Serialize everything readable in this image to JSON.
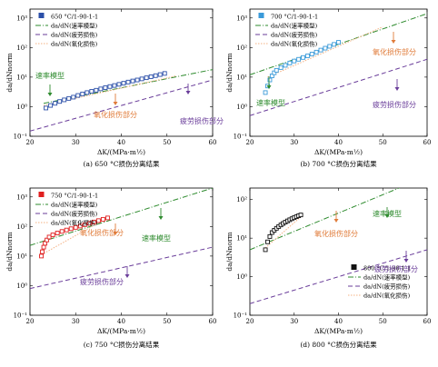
{
  "chart_data": [
    {
      "type": "scatter",
      "panel": "a",
      "caption": "(a) 650 °C损伤分离结果",
      "xlabel": "ΔK/(MPa·m½)",
      "ylabel": "da/dNnorm",
      "xlim": [
        20,
        60
      ],
      "ylim_log10": [
        -1,
        3.3
      ],
      "xticks": [
        "20",
        "30",
        "40",
        "50",
        "60"
      ],
      "yticks": [
        "10⁻¹",
        "10⁰",
        "10¹",
        "10²",
        "10³"
      ],
      "legend": [
        "650 °C/1-90-1-1",
        "da/dN(速率模型)",
        "da/dN(疲劳损伤)",
        "da/dN(氧化损伤)"
      ],
      "colors": {
        "data": "#2b4fa8",
        "rate": "#2e8b2e",
        "fatigue": "#6a3d9a",
        "oxidation": "#f4b183"
      },
      "points": [
        [
          23.5,
          0.9
        ],
        [
          24.5,
          1.1
        ],
        [
          25.5,
          1.3
        ],
        [
          26.5,
          1.5
        ],
        [
          27.5,
          1.7
        ],
        [
          28.5,
          1.9
        ],
        [
          29.5,
          2.1
        ],
        [
          30.5,
          2.4
        ],
        [
          31.5,
          2.7
        ],
        [
          32.5,
          3.0
        ],
        [
          33.5,
          3.3
        ],
        [
          34.5,
          3.6
        ],
        [
          35.5,
          4.0
        ],
        [
          36.5,
          4.4
        ],
        [
          37.5,
          4.8
        ],
        [
          38.5,
          5.2
        ],
        [
          39.5,
          5.7
        ],
        [
          40.5,
          6.2
        ],
        [
          41.5,
          6.8
        ],
        [
          42.5,
          7.4
        ],
        [
          43.5,
          8.0
        ],
        [
          44.5,
          8.7
        ],
        [
          45.5,
          9.5
        ],
        [
          46.5,
          10.3
        ],
        [
          47.5,
          11.2
        ],
        [
          48.5,
          12.2
        ],
        [
          49.5,
          13.3
        ]
      ],
      "rate_line": [
        [
          23,
          1.3
        ],
        [
          60,
          18
        ]
      ],
      "fatigue_line": [
        [
          20,
          0.15
        ],
        [
          60,
          8
        ]
      ],
      "oxidation_line": [
        [
          23,
          1.1
        ],
        [
          52,
          11
        ]
      ],
      "annotations": [
        {
          "text": "速率模型",
          "color": "#2e8b2e"
        },
        {
          "text": "氧化损伤部分",
          "color": "#e07b39"
        },
        {
          "text": "疲劳损伤部分",
          "color": "#6a3d9a"
        }
      ]
    },
    {
      "type": "scatter",
      "panel": "b",
      "caption": "(b) 700 °C损伤分离结果",
      "xlabel": "ΔK/(MPa·m½)",
      "ylabel": "da/dNnorm",
      "xlim": [
        20,
        60
      ],
      "ylim_log10": [
        -1,
        3.3
      ],
      "xticks": [
        "20",
        "30",
        "40",
        "50",
        "60"
      ],
      "yticks": [
        "10⁻¹",
        "10⁰",
        "10¹",
        "10²",
        "10³"
      ],
      "legend": [
        "700 °C/1-90-1-1",
        "da/dN(速率模型)",
        "da/dN(疲劳损伤)",
        "da/dN(氧化损伤)"
      ],
      "colors": {
        "data": "#3a9ad9",
        "rate": "#2e8b2e",
        "fatigue": "#6a3d9a",
        "oxidation": "#f4b183"
      },
      "points": [
        [
          23.5,
          3.0
        ],
        [
          24.0,
          5.0
        ],
        [
          24.5,
          8.0
        ],
        [
          25.0,
          11.0
        ],
        [
          25.5,
          14.0
        ],
        [
          26.0,
          17.0
        ],
        [
          27.0,
          21.0
        ],
        [
          28.0,
          25.0
        ],
        [
          29.0,
          30.0
        ],
        [
          30.0,
          35.0
        ],
        [
          31.0,
          40.0
        ],
        [
          32.0,
          46.0
        ],
        [
          33.0,
          52.0
        ],
        [
          34.0,
          60.0
        ],
        [
          35.0,
          70.0
        ],
        [
          36.0,
          82.0
        ],
        [
          37.0,
          95.0
        ],
        [
          38.0,
          110.0
        ],
        [
          39.0,
          128.0
        ],
        [
          40.0,
          150.0
        ]
      ],
      "rate_line": [
        [
          20,
          12
        ],
        [
          60,
          1400
        ]
      ],
      "fatigue_line": [
        [
          20,
          0.5
        ],
        [
          60,
          40
        ]
      ],
      "oxidation_line": [
        [
          24,
          10
        ],
        [
          50,
          500
        ]
      ],
      "annotations": [
        {
          "text": "速率模型",
          "color": "#2e8b2e"
        },
        {
          "text": "氧化损伤部分",
          "color": "#e07b39"
        },
        {
          "text": "疲劳损伤部分",
          "color": "#6a3d9a"
        }
      ]
    },
    {
      "type": "scatter",
      "panel": "c",
      "caption": "(c) 750 °C损伤分离结果",
      "xlabel": "ΔK/(MPa·m½)",
      "ylabel": "da/dNnorm",
      "xlim": [
        20,
        60
      ],
      "ylim_log10": [
        -1,
        3.3
      ],
      "xticks": [
        "20",
        "30",
        "40",
        "50",
        "60"
      ],
      "yticks": [
        "10⁻¹",
        "10⁰",
        "10¹",
        "10²",
        "10³"
      ],
      "legend": [
        "750 °C/1-90-1-1",
        "da/dN(速率模型)",
        "da/dN(疲劳损伤)",
        "da/dN(氧化损伤)"
      ],
      "colors": {
        "data": "#e02020",
        "rate": "#2e8b2e",
        "fatigue": "#6a3d9a",
        "oxidation": "#f4b183"
      },
      "points": [
        [
          22.5,
          10
        ],
        [
          22.7,
          14
        ],
        [
          23.0,
          20
        ],
        [
          23.3,
          27
        ],
        [
          23.7,
          35
        ],
        [
          24.2,
          44
        ],
        [
          25.0,
          52
        ],
        [
          26.0,
          60
        ],
        [
          27.0,
          68
        ],
        [
          28.0,
          76
        ],
        [
          29.0,
          84
        ],
        [
          30.0,
          93
        ],
        [
          31.0,
          103
        ],
        [
          32.0,
          115
        ],
        [
          33.0,
          128
        ],
        [
          34.0,
          142
        ],
        [
          35.0,
          158
        ],
        [
          36.0,
          175
        ],
        [
          37.0,
          195
        ]
      ],
      "rate_line": [
        [
          20,
          23
        ],
        [
          60,
          2000
        ]
      ],
      "fatigue_line": [
        [
          20,
          0.8
        ],
        [
          60,
          20
        ]
      ],
      "oxidation_line": [
        [
          22,
          10
        ],
        [
          37,
          200
        ]
      ],
      "annotations": [
        {
          "text": "速率模型",
          "color": "#2e8b2e"
        },
        {
          "text": "氧化损伤部分",
          "color": "#e07b39"
        },
        {
          "text": "疲劳损伤部分",
          "color": "#6a3d9a"
        }
      ]
    },
    {
      "type": "scatter",
      "panel": "d",
      "caption": "(d) 800 °C损伤分离结果",
      "xlabel": "ΔK/(MPa·m½)",
      "ylabel": "da/dNnorm",
      "xlim": [
        20,
        60
      ],
      "ylim_log10": [
        -1,
        2.3
      ],
      "xticks": [
        "20",
        "30",
        "40",
        "50",
        "60"
      ],
      "yticks": [
        "10⁻¹",
        "10⁰",
        "10¹",
        "10²"
      ],
      "legend": [
        "800 °C/1-90-1-1",
        "da/dN(速率模型)",
        "da/dN(疲劳损伤)",
        "da/dN(氧化损伤)"
      ],
      "colors": {
        "data": "#111111",
        "rate": "#2e8b2e",
        "fatigue": "#6a3d9a",
        "oxidation": "#f4b183"
      },
      "points": [
        [
          23.5,
          5
        ],
        [
          24.0,
          8
        ],
        [
          24.5,
          11
        ],
        [
          25.0,
          14
        ],
        [
          25.5,
          16
        ],
        [
          26.0,
          18
        ],
        [
          26.5,
          20
        ],
        [
          27.0,
          22
        ],
        [
          27.5,
          24
        ],
        [
          28.0,
          26
        ],
        [
          28.5,
          28
        ],
        [
          29.0,
          30
        ],
        [
          29.5,
          32
        ],
        [
          30.0,
          34
        ],
        [
          30.5,
          36
        ],
        [
          31.0,
          38
        ],
        [
          31.5,
          40
        ]
      ],
      "rate_line": [
        [
          20,
          5
        ],
        [
          60,
          400
        ]
      ],
      "fatigue_line": [
        [
          20,
          0.2
        ],
        [
          60,
          5
        ]
      ],
      "oxidation_line": [
        [
          23,
          5
        ],
        [
          32,
          40
        ]
      ],
      "annotations": [
        {
          "text": "速率模型",
          "color": "#2e8b2e"
        },
        {
          "text": "氧化损伤部分",
          "color": "#e07b39"
        },
        {
          "text": "疲劳损伤部分",
          "color": "#6a3d9a"
        }
      ]
    }
  ]
}
